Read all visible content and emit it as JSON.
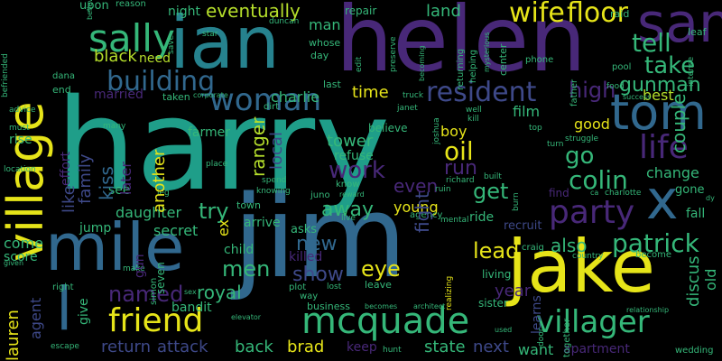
{
  "palette": {
    "yellow": "#e6e419",
    "lime": "#b5de2b",
    "green": "#6ece58",
    "teal_green": "#35b779",
    "teal": "#1f9e89",
    "cyan_blue": "#26828e",
    "blue": "#31688e",
    "indigo": "#3e4989",
    "purple": "#482878",
    "dark_purple": "#440154"
  },
  "words": {
    "harry": "harry",
    "jim": "jim",
    "helen": "helen",
    "ian": "ian",
    "sam": "sam",
    "village": "village",
    "mile": "mile",
    "jake": "jake",
    "tom": "tom",
    "x": "x",
    "l": "l",
    "sally": "sally",
    "woman": "woman",
    "friend": "friend",
    "mcquade": "mcquade",
    "villager": "villager",
    "patrick": "patrick",
    "party": "party",
    "colin": "colin",
    "life": "life",
    "building": "building",
    "resident": "resident",
    "wife": "wife",
    "floor": "floor",
    "tell": "tell",
    "take": "take",
    "gunman": "gunman",
    "high": "high",
    "couple": "couple",
    "go": "go",
    "oil": "oil",
    "run": "run",
    "get": "get",
    "work": "work",
    "even": "even",
    "try": "try",
    "away": "away",
    "new": "new",
    "men": "men",
    "show": "show",
    "eye": "eye",
    "lead": "lead",
    "also": "also",
    "named": "named",
    "royal": "royal",
    "return": "return",
    "attack": "attack",
    "back": "back",
    "brad": "brad",
    "state": "state",
    "next": "next",
    "want": "want",
    "apartment": "apartment",
    "year": "year",
    "lauren": "lauren",
    "eventually": "eventually",
    "land": "land",
    "black": "black",
    "need": "need",
    "charlie": "charlie",
    "time": "time",
    "married": "married",
    "man": "man",
    "night": "night",
    "upon": "upon",
    "reason": "reason",
    "place": "place",
    "fight": "fight",
    "tower": "tower",
    "boy": "boy",
    "good": "good",
    "film": "film",
    "best": "best",
    "change": "change",
    "young": "young",
    "ride": "ride",
    "daughter": "daughter",
    "kiss": "kiss",
    "jump": "jump",
    "secret": "secret",
    "come": "come",
    "score": "score",
    "child": "child",
    "arrive": "arrive",
    "asks": "asks",
    "killed": "killed",
    "agent": "agent",
    "give": "give",
    "bandit": "bandit",
    "keep": "keep",
    "business": "business",
    "sister": "sister",
    "living": "living",
    "learns": "learns",
    "discus": "discus",
    "old": "old",
    "another": "another",
    "ranger": "ranger",
    "local": "local",
    "like": "like",
    "family": "family",
    "ex": "ex",
    "farmer": "farmer",
    "later": "later",
    "see": "see",
    "refuse": "refuse",
    "gun": "gun",
    "recruit": "recruit",
    "find": "find",
    "gone": "gone",
    "fall": "fall",
    "rise": "rise",
    "effort": "effort",
    "end": "end",
    "must": "must",
    "advice": "advice",
    "location": "location",
    "befriended": "befriended",
    "dana": "dana",
    "taken": "taken",
    "corporate": "corporate",
    "last": "last",
    "repair": "repair",
    "duncan": "duncan",
    "whose": "whose",
    "day": "day",
    "star": "star",
    "save": "save",
    "edit": "edit",
    "preserve": "preserve",
    "becoming": "becoming",
    "returning": "returning",
    "helping": "helping",
    "mysterious": "mysterious",
    "center": "center",
    "raid": "raid",
    "leaf": "leaf",
    "phone": "phone",
    "pool": "pool",
    "food": "food",
    "success": "success",
    "intense": "intense",
    "father": "father",
    "truck": "truck",
    "janet": "janet",
    "well": "well",
    "kill": "kill",
    "top": "top",
    "joshua": "joshua",
    "turn": "turn",
    "struggle": "struggle",
    "many": "many",
    "believing": "believing",
    "dirt": "dirt",
    "believe": "believe",
    "leg": "leg",
    "spend": "spend",
    "knowing": "knowing",
    "juno": "juno",
    "reward": "reward",
    "know": "know",
    "richard": "richard",
    "ruin": "ruin",
    "built": "built",
    "burn": "burn",
    "ca": "ca",
    "charlotte": "charlotte",
    "dy": "dy",
    "town": "town",
    "seven": "seven",
    "simon": "simon",
    "make": "make",
    "live": "live",
    "agency": "agency",
    "mental": "mental",
    "craig": "craig",
    "country": "country",
    "become": "become",
    "relationship": "relationship",
    "wedding": "wedding",
    "given": "given",
    "right": "right",
    "escape": "escape",
    "elevator": "elevator",
    "sex": "sex",
    "lost": "lost",
    "way": "way",
    "plot": "plot",
    "leave": "leave",
    "becomes": "becomes",
    "architect": "architect",
    "realizing": "realizing",
    "used": "used",
    "hunt": "hunt",
    "door": "door",
    "together": "together"
  }
}
